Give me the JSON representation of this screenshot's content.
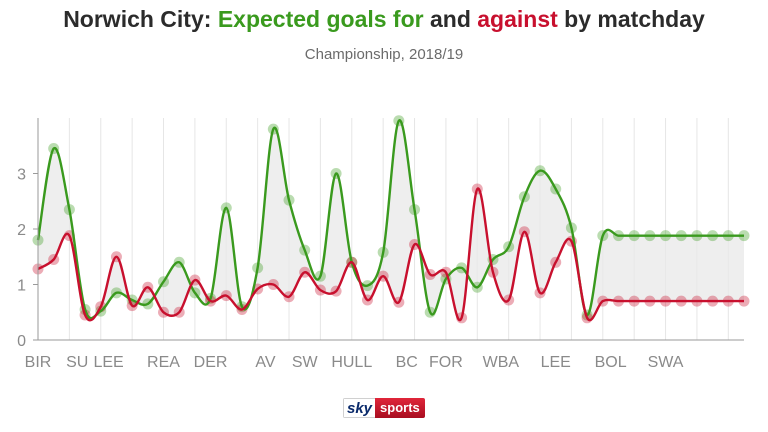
{
  "title": {
    "prefix": "Norwich City: ",
    "for_text": "Expected goals for",
    "middle": " and ",
    "against_text": "against",
    "suffix": " by matchday"
  },
  "subtitle": "Championship, 2018/19",
  "logo": {
    "sky": "sky",
    "sports": "sports"
  },
  "colors": {
    "for": "#3a9a1e",
    "against": "#c8102e",
    "fill": "#e8e8e8",
    "text": "#2b2b2b",
    "axis": "#8a8a8a"
  },
  "chart_data": {
    "type": "line",
    "title": "Norwich City: Expected goals for and against by matchday",
    "subtitle": "Championship, 2018/19",
    "xlabel": "",
    "ylabel": "",
    "ylim": [
      0,
      4
    ],
    "yticks": [
      0,
      1,
      2,
      3
    ],
    "grid": "vertical",
    "x": [
      1,
      2,
      3,
      4,
      5,
      6,
      7,
      8,
      9,
      10,
      11,
      12,
      13,
      14,
      15,
      16,
      17,
      18,
      19,
      20,
      21,
      22,
      23,
      24,
      25,
      26,
      27,
      28,
      29,
      30,
      31,
      32,
      33,
      34,
      35,
      36,
      37,
      38,
      39,
      40,
      41,
      42,
      43,
      44,
      45,
      46
    ],
    "x_tick_labels": [
      {
        "x": 1,
        "label": "BIR"
      },
      {
        "x": 3.5,
        "label": "SU"
      },
      {
        "x": 5.5,
        "label": "LEE"
      },
      {
        "x": 9,
        "label": "REA"
      },
      {
        "x": 12,
        "label": "DER"
      },
      {
        "x": 15.5,
        "label": "AV"
      },
      {
        "x": 18,
        "label": "SW"
      },
      {
        "x": 21,
        "label": "HULL"
      },
      {
        "x": 24.5,
        "label": "BC"
      },
      {
        "x": 27,
        "label": "FOR"
      },
      {
        "x": 30.5,
        "label": "WBA"
      },
      {
        "x": 34,
        "label": "LEE"
      },
      {
        "x": 37.5,
        "label": "BOL"
      },
      {
        "x": 41,
        "label": "SWA"
      }
    ],
    "series": [
      {
        "name": "Expected goals for",
        "color": "#3a9a1e",
        "values": [
          1.8,
          3.45,
          2.35,
          0.55,
          0.52,
          0.85,
          0.72,
          0.65,
          1.05,
          1.4,
          0.85,
          0.75,
          2.38,
          0.6,
          1.3,
          3.8,
          2.52,
          1.62,
          1.15,
          3.0,
          1.4,
          0.98,
          1.58,
          3.95,
          2.35,
          0.5,
          1.1,
          1.3,
          0.95,
          1.45,
          1.68,
          2.58,
          3.05,
          2.72,
          2.02,
          0.45,
          1.88,
          1.88,
          1.88,
          1.88,
          1.88,
          1.88,
          1.88,
          1.88,
          1.88,
          1.88
        ]
      },
      {
        "name": "Expected goals against",
        "color": "#c8102e",
        "values": [
          1.28,
          1.45,
          1.88,
          0.45,
          0.6,
          1.5,
          0.62,
          0.95,
          0.5,
          0.5,
          1.08,
          0.7,
          0.8,
          0.55,
          0.92,
          1.0,
          0.78,
          1.22,
          0.9,
          0.88,
          1.4,
          0.72,
          1.15,
          0.68,
          1.72,
          1.18,
          1.22,
          0.4,
          2.72,
          1.22,
          0.72,
          1.95,
          0.85,
          1.4,
          1.78,
          0.4,
          0.7,
          0.7,
          0.7,
          0.7,
          0.7,
          0.7,
          0.7,
          0.7,
          0.7,
          0.7
        ]
      }
    ]
  }
}
